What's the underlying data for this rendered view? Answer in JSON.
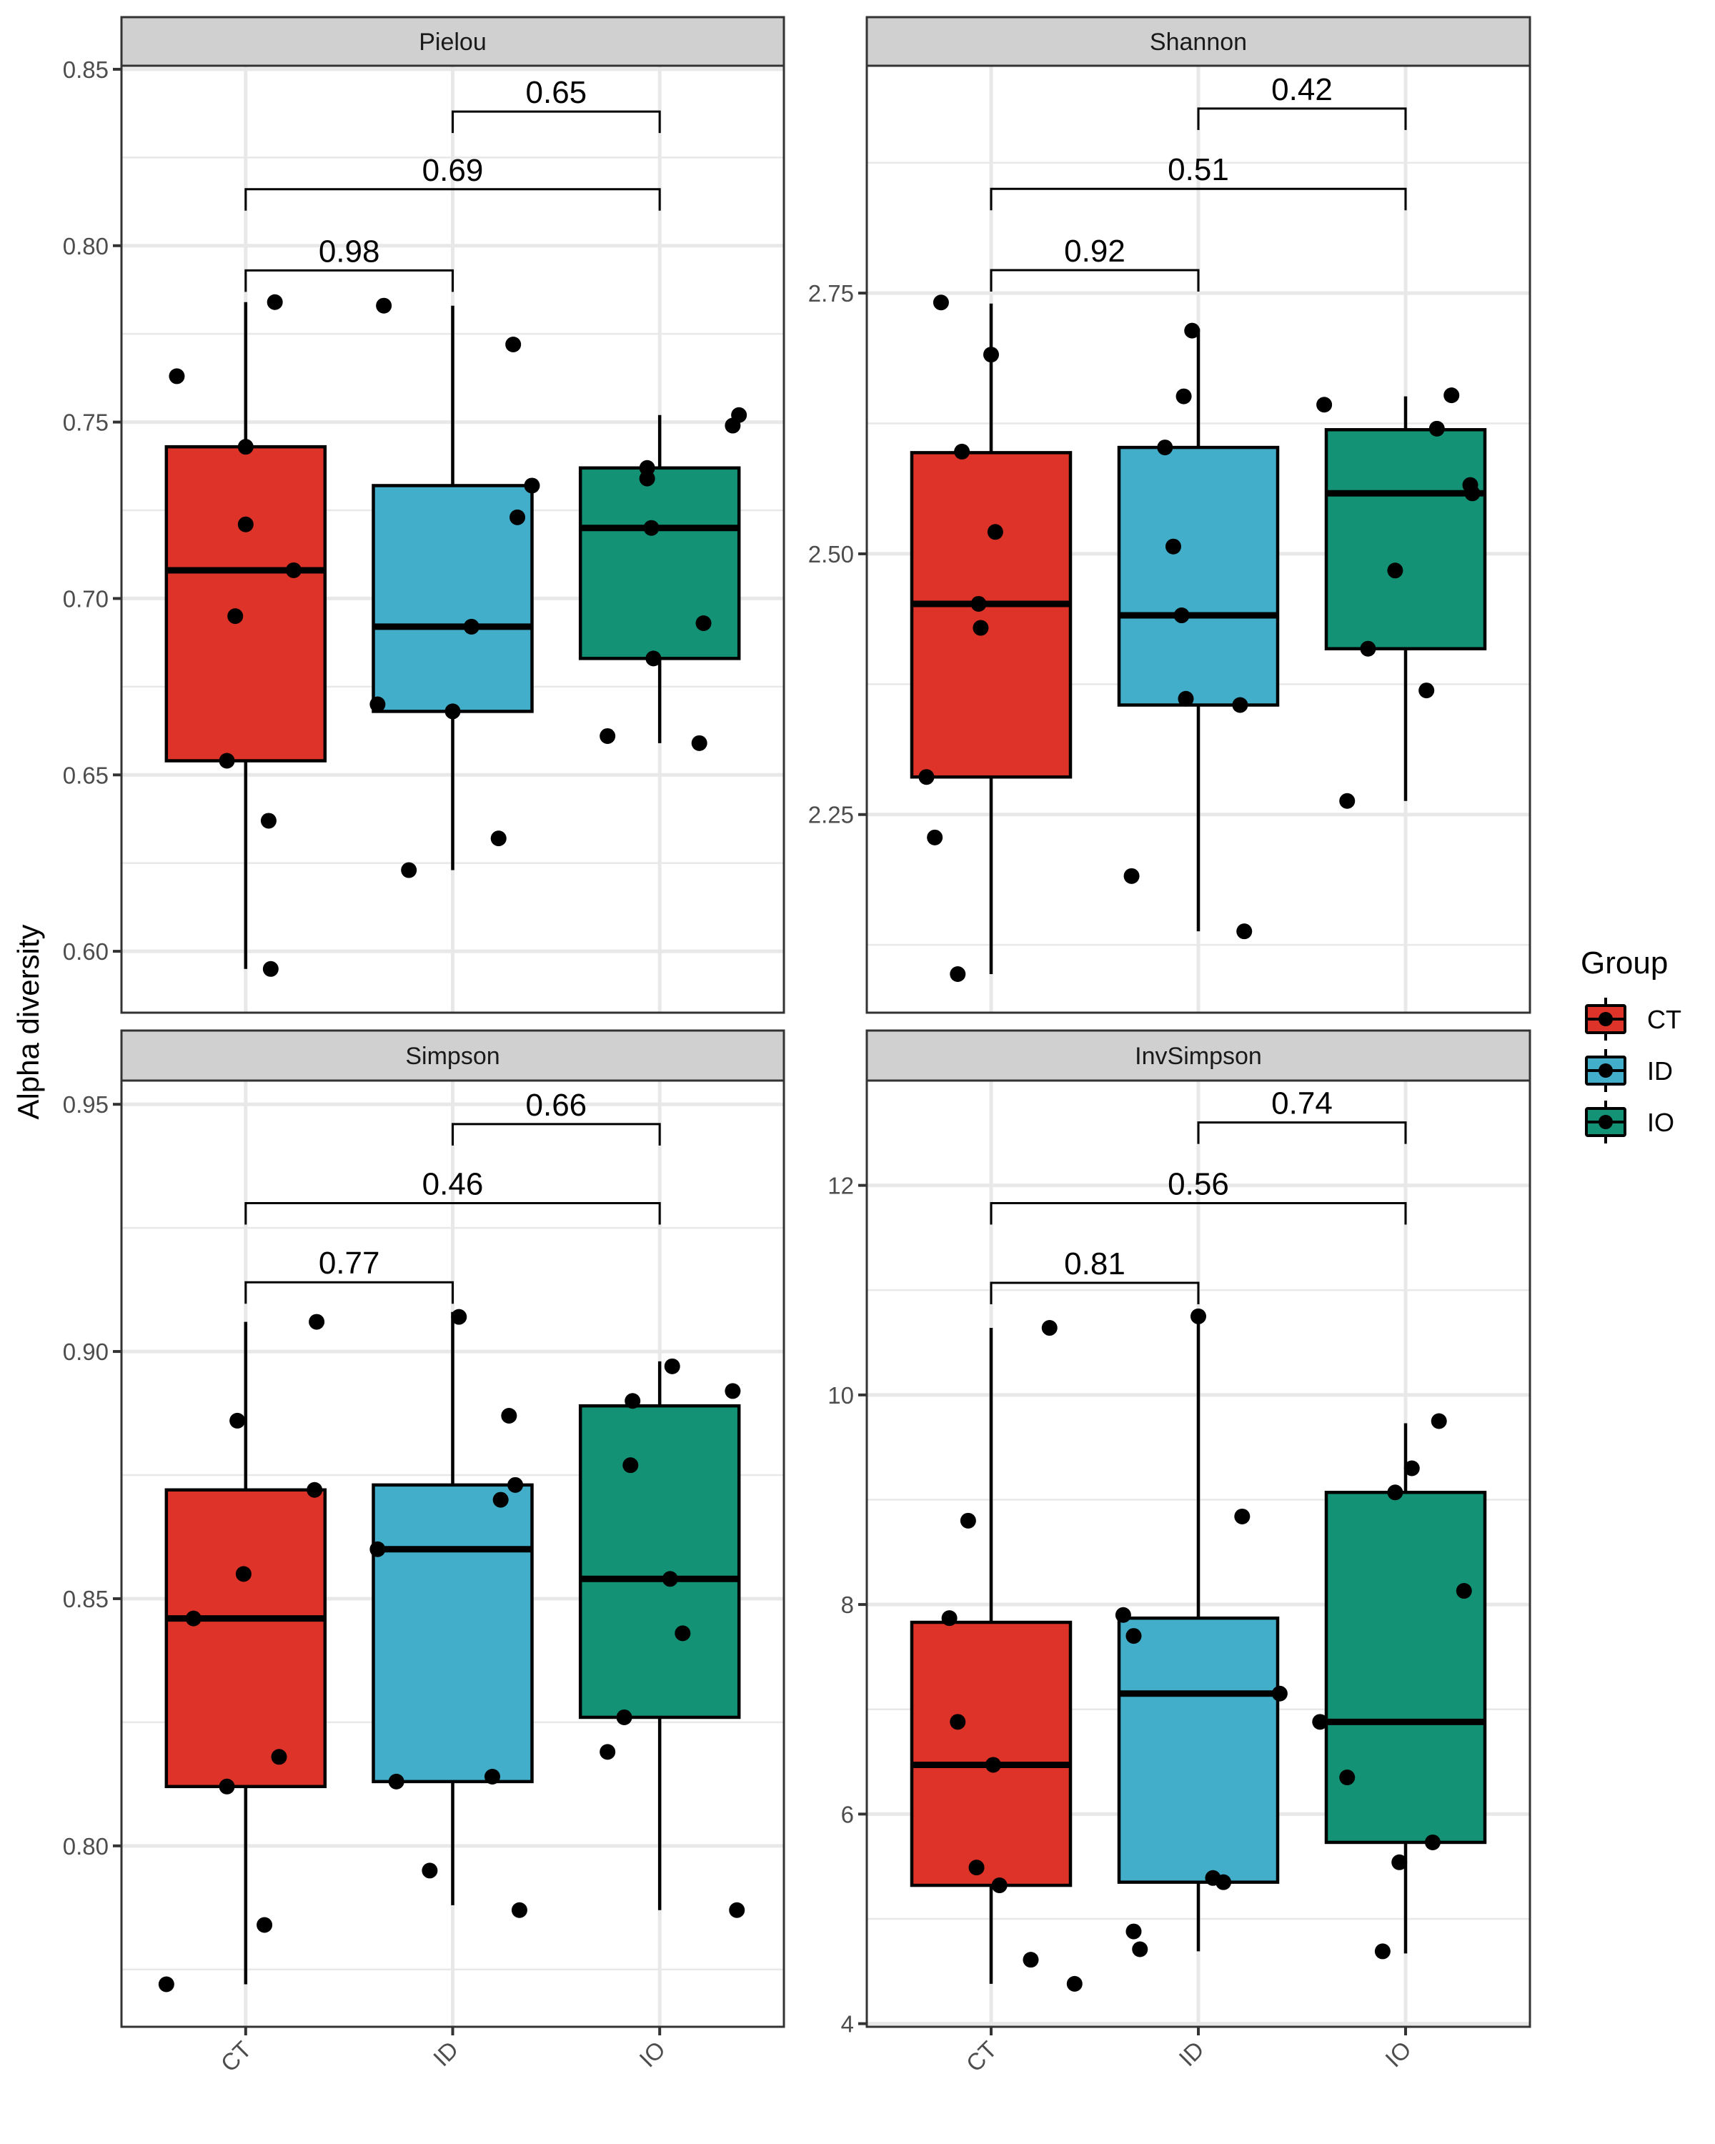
{
  "colors": {
    "CT": "#DD3328",
    "ID": "#42AECA",
    "IO": "#149275",
    "strip_fill": "#D0D0D0",
    "grid": "#E8E8E8",
    "frame": "#333333"
  },
  "chart_data": {
    "type": "box",
    "ylabel": "Alpha diversity",
    "xlabel": "",
    "categories": [
      "CT",
      "ID",
      "IO"
    ],
    "legend": {
      "title": "Group",
      "entries": [
        "CT",
        "ID",
        "IO"
      ],
      "placement": "right"
    },
    "grid": true,
    "panels": [
      {
        "title": "Pielou",
        "ylim": [
          0.5826,
          0.851
        ],
        "yticks": [
          0.6,
          0.65,
          0.7,
          0.75,
          0.8,
          0.85
        ],
        "ytick_labels": [
          "0.60",
          "0.65",
          "0.70",
          "0.75",
          "0.80",
          "0.85"
        ],
        "minor_ticks": [
          0.625,
          0.675,
          0.725,
          0.775,
          0.825
        ],
        "boxes": [
          {
            "group": "CT",
            "whisker_low": 0.595,
            "q1": 0.654,
            "median": 0.708,
            "q3": 0.743,
            "whisker_high": 0.784
          },
          {
            "group": "ID",
            "whisker_low": 0.623,
            "q1": 0.668,
            "median": 0.692,
            "q3": 0.732,
            "whisker_high": 0.783
          },
          {
            "group": "IO",
            "whisker_low": 0.659,
            "q1": 0.683,
            "median": 0.72,
            "q3": 0.737,
            "whisker_high": 0.752
          }
        ],
        "points": [
          {
            "group": "CT",
            "jitter": -0.33,
            "y": 0.763
          },
          {
            "group": "CT",
            "jitter": 0.14,
            "y": 0.784
          },
          {
            "group": "CT",
            "jitter": 0.0,
            "y": 0.743
          },
          {
            "group": "CT",
            "jitter": 0.0,
            "y": 0.721
          },
          {
            "group": "CT",
            "jitter": 0.23,
            "y": 0.708
          },
          {
            "group": "CT",
            "jitter": -0.05,
            "y": 0.695
          },
          {
            "group": "CT",
            "jitter": -0.09,
            "y": 0.654
          },
          {
            "group": "CT",
            "jitter": 0.11,
            "y": 0.637
          },
          {
            "group": "CT",
            "jitter": 0.12,
            "y": 0.595
          },
          {
            "group": "ID",
            "jitter": -0.33,
            "y": 0.783
          },
          {
            "group": "ID",
            "jitter": -0.36,
            "y": 0.67
          },
          {
            "group": "ID",
            "jitter": 0.0,
            "y": 0.668
          },
          {
            "group": "ID",
            "jitter": 0.09,
            "y": 0.692
          },
          {
            "group": "ID",
            "jitter": 0.29,
            "y": 0.772
          },
          {
            "group": "ID",
            "jitter": 0.31,
            "y": 0.723
          },
          {
            "group": "ID",
            "jitter": 0.38,
            "y": 0.732
          },
          {
            "group": "ID",
            "jitter": -0.21,
            "y": 0.623
          },
          {
            "group": "ID",
            "jitter": 0.22,
            "y": 0.632
          },
          {
            "group": "IO",
            "jitter": -0.06,
            "y": 0.737
          },
          {
            "group": "IO",
            "jitter": -0.06,
            "y": 0.734
          },
          {
            "group": "IO",
            "jitter": -0.04,
            "y": 0.72
          },
          {
            "group": "IO",
            "jitter": -0.03,
            "y": 0.683
          },
          {
            "group": "IO",
            "jitter": 0.21,
            "y": 0.693
          },
          {
            "group": "IO",
            "jitter": 0.35,
            "y": 0.749
          },
          {
            "group": "IO",
            "jitter": 0.38,
            "y": 0.752
          },
          {
            "group": "IO",
            "jitter": -0.25,
            "y": 0.661
          },
          {
            "group": "IO",
            "jitter": 0.19,
            "y": 0.659
          }
        ],
        "comparisons": [
          {
            "from": "CT",
            "to": "ID",
            "label": "0.98",
            "y": 0.793
          },
          {
            "from": "CT",
            "to": "IO",
            "label": "0.69",
            "y": 0.816
          },
          {
            "from": "ID",
            "to": "IO",
            "label": "0.65",
            "y": 0.838
          }
        ]
      },
      {
        "title": "Shannon",
        "ylim": [
          2.06,
          2.968
        ],
        "yticks": [
          2.25,
          2.5,
          2.75
        ],
        "ytick_labels": [
          "2.25",
          "2.50",
          "2.75"
        ],
        "minor_ticks": [
          2.125,
          2.375,
          2.625,
          2.875
        ],
        "boxes": [
          {
            "group": "CT",
            "whisker_low": 2.097,
            "q1": 2.286,
            "median": 2.452,
            "q3": 2.597,
            "whisker_high": 2.74
          },
          {
            "group": "ID",
            "whisker_low": 2.138,
            "q1": 2.355,
            "median": 2.441,
            "q3": 2.602,
            "whisker_high": 2.716
          },
          {
            "group": "IO",
            "whisker_low": 2.263,
            "q1": 2.409,
            "median": 2.558,
            "q3": 2.619,
            "whisker_high": 2.651
          }
        ],
        "points": [
          {
            "group": "CT",
            "jitter": -0.24,
            "y": 2.741
          },
          {
            "group": "CT",
            "jitter": 0.0,
            "y": 2.691
          },
          {
            "group": "CT",
            "jitter": -0.14,
            "y": 2.598
          },
          {
            "group": "CT",
            "jitter": 0.02,
            "y": 2.521
          },
          {
            "group": "CT",
            "jitter": -0.06,
            "y": 2.452
          },
          {
            "group": "CT",
            "jitter": -0.05,
            "y": 2.429
          },
          {
            "group": "CT",
            "jitter": -0.31,
            "y": 2.286
          },
          {
            "group": "CT",
            "jitter": -0.27,
            "y": 2.228
          },
          {
            "group": "CT",
            "jitter": -0.16,
            "y": 2.097
          },
          {
            "group": "ID",
            "jitter": -0.03,
            "y": 2.714
          },
          {
            "group": "ID",
            "jitter": -0.07,
            "y": 2.651
          },
          {
            "group": "ID",
            "jitter": -0.16,
            "y": 2.602
          },
          {
            "group": "ID",
            "jitter": -0.12,
            "y": 2.507
          },
          {
            "group": "ID",
            "jitter": -0.08,
            "y": 2.441
          },
          {
            "group": "ID",
            "jitter": -0.06,
            "y": 2.361
          },
          {
            "group": "ID",
            "jitter": 0.2,
            "y": 2.355
          },
          {
            "group": "ID",
            "jitter": -0.32,
            "y": 2.191
          },
          {
            "group": "ID",
            "jitter": 0.22,
            "y": 2.138
          },
          {
            "group": "IO",
            "jitter": -0.39,
            "y": 2.643
          },
          {
            "group": "IO",
            "jitter": 0.22,
            "y": 2.652
          },
          {
            "group": "IO",
            "jitter": 0.15,
            "y": 2.62
          },
          {
            "group": "IO",
            "jitter": 0.31,
            "y": 2.566
          },
          {
            "group": "IO",
            "jitter": 0.32,
            "y": 2.558
          },
          {
            "group": "IO",
            "jitter": -0.05,
            "y": 2.484
          },
          {
            "group": "IO",
            "jitter": -0.18,
            "y": 2.409
          },
          {
            "group": "IO",
            "jitter": 0.1,
            "y": 2.369
          },
          {
            "group": "IO",
            "jitter": -0.28,
            "y": 2.263
          }
        ],
        "comparisons": [
          {
            "from": "CT",
            "to": "ID",
            "label": "0.92",
            "y": 2.772
          },
          {
            "from": "CT",
            "to": "IO",
            "label": "0.51",
            "y": 2.85
          },
          {
            "from": "ID",
            "to": "IO",
            "label": "0.42",
            "y": 2.927
          }
        ]
      },
      {
        "title": "Simpson",
        "ylim": [
          0.7634,
          0.9548
        ],
        "yticks": [
          0.8,
          0.85,
          0.9,
          0.95
        ],
        "ytick_labels": [
          "0.80",
          "0.85",
          "0.90",
          "0.95"
        ],
        "minor_ticks": [
          0.775,
          0.825,
          0.875,
          0.925
        ],
        "boxes": [
          {
            "group": "CT",
            "whisker_low": 0.772,
            "q1": 0.812,
            "median": 0.846,
            "q3": 0.872,
            "whisker_high": 0.906
          },
          {
            "group": "ID",
            "whisker_low": 0.788,
            "q1": 0.813,
            "median": 0.86,
            "q3": 0.873,
            "whisker_high": 0.908
          },
          {
            "group": "IO",
            "whisker_low": 0.787,
            "q1": 0.826,
            "median": 0.854,
            "q3": 0.889,
            "whisker_high": 0.898
          }
        ],
        "points": [
          {
            "group": "CT",
            "jitter": -0.38,
            "y": 0.772
          },
          {
            "group": "CT",
            "jitter": 0.09,
            "y": 0.784
          },
          {
            "group": "CT",
            "jitter": -0.09,
            "y": 0.812
          },
          {
            "group": "CT",
            "jitter": 0.16,
            "y": 0.818
          },
          {
            "group": "CT",
            "jitter": -0.25,
            "y": 0.846
          },
          {
            "group": "CT",
            "jitter": -0.01,
            "y": 0.855
          },
          {
            "group": "CT",
            "jitter": 0.33,
            "y": 0.872
          },
          {
            "group": "CT",
            "jitter": -0.04,
            "y": 0.886
          },
          {
            "group": "CT",
            "jitter": 0.34,
            "y": 0.906
          },
          {
            "group": "ID",
            "jitter": -0.36,
            "y": 0.86
          },
          {
            "group": "ID",
            "jitter": -0.27,
            "y": 0.813
          },
          {
            "group": "ID",
            "jitter": -0.11,
            "y": 0.795
          },
          {
            "group": "ID",
            "jitter": 0.19,
            "y": 0.814
          },
          {
            "group": "ID",
            "jitter": 0.23,
            "y": 0.87
          },
          {
            "group": "ID",
            "jitter": 0.3,
            "y": 0.873
          },
          {
            "group": "ID",
            "jitter": 0.27,
            "y": 0.887
          },
          {
            "group": "ID",
            "jitter": 0.32,
            "y": 0.787
          },
          {
            "group": "ID",
            "jitter": 0.03,
            "y": 0.907
          },
          {
            "group": "IO",
            "jitter": -0.25,
            "y": 0.819
          },
          {
            "group": "IO",
            "jitter": -0.17,
            "y": 0.826
          },
          {
            "group": "IO",
            "jitter": 0.05,
            "y": 0.854
          },
          {
            "group": "IO",
            "jitter": 0.11,
            "y": 0.843
          },
          {
            "group": "IO",
            "jitter": -0.14,
            "y": 0.877
          },
          {
            "group": "IO",
            "jitter": -0.13,
            "y": 0.89
          },
          {
            "group": "IO",
            "jitter": 0.06,
            "y": 0.897
          },
          {
            "group": "IO",
            "jitter": 0.35,
            "y": 0.892
          },
          {
            "group": "IO",
            "jitter": 0.37,
            "y": 0.787
          }
        ],
        "comparisons": [
          {
            "from": "CT",
            "to": "ID",
            "label": "0.77",
            "y": 0.914
          },
          {
            "from": "CT",
            "to": "IO",
            "label": "0.46",
            "y": 0.93
          },
          {
            "from": "ID",
            "to": "IO",
            "label": "0.66",
            "y": 0.946
          }
        ]
      },
      {
        "title": "InvSimpson",
        "ylim": [
          3.97,
          13.0
        ],
        "yticks": [
          4,
          6,
          8,
          10,
          12
        ],
        "ytick_labels": [
          "4",
          "6",
          "8",
          "10",
          "12"
        ],
        "minor_ticks": [
          5,
          7,
          9,
          11
        ],
        "boxes": [
          {
            "group": "CT",
            "whisker_low": 4.38,
            "q1": 5.32,
            "median": 6.47,
            "q3": 7.83,
            "whisker_high": 10.64
          },
          {
            "group": "ID",
            "whisker_low": 4.69,
            "q1": 5.35,
            "median": 7.15,
            "q3": 7.87,
            "whisker_high": 10.78
          },
          {
            "group": "IO",
            "whisker_low": 4.67,
            "q1": 5.73,
            "median": 6.88,
            "q3": 9.07,
            "whisker_high": 9.73
          }
        ],
        "points": [
          {
            "group": "CT",
            "jitter": -0.2,
            "y": 7.87
          },
          {
            "group": "CT",
            "jitter": -0.16,
            "y": 6.88
          },
          {
            "group": "CT",
            "jitter": 0.01,
            "y": 6.47
          },
          {
            "group": "CT",
            "jitter": -0.07,
            "y": 5.49
          },
          {
            "group": "CT",
            "jitter": 0.04,
            "y": 5.32
          },
          {
            "group": "CT",
            "jitter": -0.11,
            "y": 8.8
          },
          {
            "group": "CT",
            "jitter": 0.28,
            "y": 10.64
          },
          {
            "group": "CT",
            "jitter": 0.19,
            "y": 4.61
          },
          {
            "group": "CT",
            "jitter": 0.4,
            "y": 4.38
          },
          {
            "group": "ID",
            "jitter": -0.36,
            "y": 7.9
          },
          {
            "group": "ID",
            "jitter": -0.31,
            "y": 7.7
          },
          {
            "group": "ID",
            "jitter": 0.0,
            "y": 10.75
          },
          {
            "group": "ID",
            "jitter": 0.21,
            "y": 8.84
          },
          {
            "group": "ID",
            "jitter": 0.39,
            "y": 7.15
          },
          {
            "group": "ID",
            "jitter": 0.07,
            "y": 5.39
          },
          {
            "group": "ID",
            "jitter": 0.12,
            "y": 5.35
          },
          {
            "group": "ID",
            "jitter": -0.31,
            "y": 4.88
          },
          {
            "group": "ID",
            "jitter": -0.28,
            "y": 4.71
          },
          {
            "group": "IO",
            "jitter": -0.41,
            "y": 6.88
          },
          {
            "group": "IO",
            "jitter": -0.28,
            "y": 6.35
          },
          {
            "group": "IO",
            "jitter": -0.05,
            "y": 9.07
          },
          {
            "group": "IO",
            "jitter": 0.03,
            "y": 9.3
          },
          {
            "group": "IO",
            "jitter": 0.16,
            "y": 9.75
          },
          {
            "group": "IO",
            "jitter": 0.28,
            "y": 8.13
          },
          {
            "group": "IO",
            "jitter": 0.13,
            "y": 5.73
          },
          {
            "group": "IO",
            "jitter": -0.03,
            "y": 5.54
          },
          {
            "group": "IO",
            "jitter": -0.11,
            "y": 4.69
          }
        ],
        "comparisons": [
          {
            "from": "CT",
            "to": "ID",
            "label": "0.81",
            "y": 11.07
          },
          {
            "from": "CT",
            "to": "IO",
            "label": "0.56",
            "y": 11.83
          },
          {
            "from": "ID",
            "to": "IO",
            "label": "0.74",
            "y": 12.6
          }
        ]
      }
    ]
  }
}
